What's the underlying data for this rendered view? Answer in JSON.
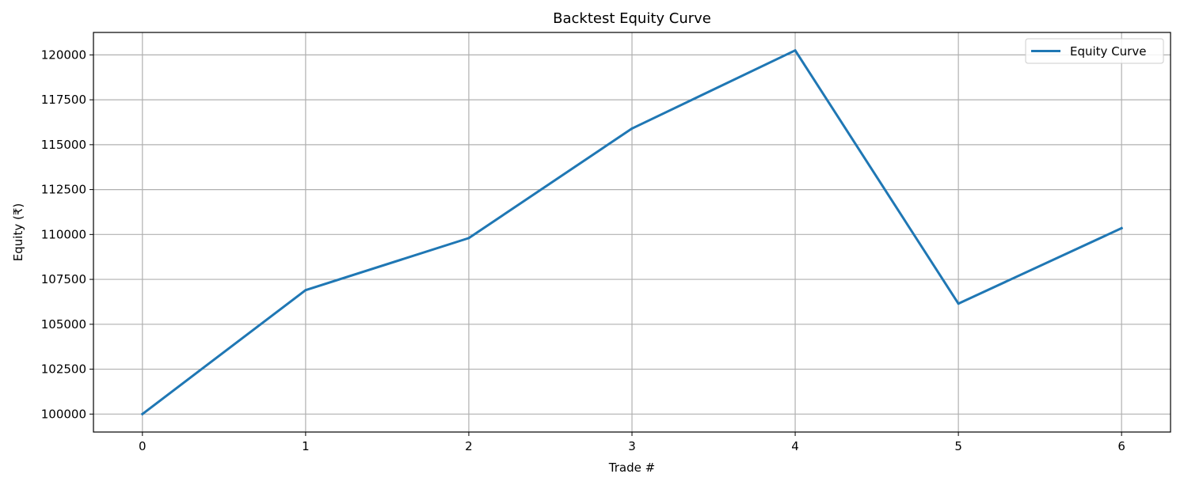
{
  "chart_data": {
    "type": "line",
    "title": "Backtest Equity Curve",
    "xlabel": "Trade #",
    "ylabel": "Equity (₹)",
    "x": [
      0,
      1,
      2,
      3,
      4,
      5,
      6
    ],
    "series": [
      {
        "name": "Equity Curve",
        "color": "#1f77b4",
        "values": [
          100000,
          106900,
          109800,
          115900,
          120250,
          106150,
          110350
        ]
      }
    ],
    "xticks": [
      "0",
      "1",
      "2",
      "3",
      "4",
      "5",
      "6"
    ],
    "yticks": [
      "100000",
      "102500",
      "105000",
      "107500",
      "110000",
      "112500",
      "115000",
      "117500",
      "120000"
    ],
    "xlim": [
      -0.3,
      6.3
    ],
    "ylim": [
      99000,
      121250
    ],
    "grid": true,
    "legend_position": "top-right"
  }
}
